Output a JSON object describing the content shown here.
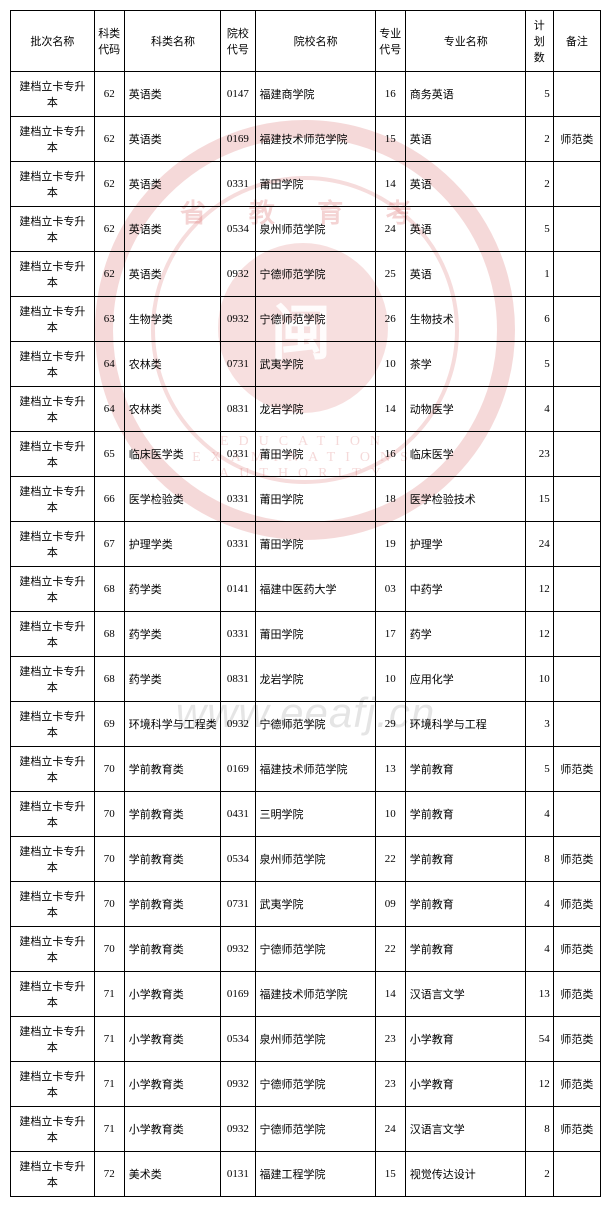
{
  "watermark": {
    "seal_top": "省 教 育 考",
    "seal_center": "闽",
    "seal_bottom": "EDUCATION EXAMINATIONS AUTHORITY",
    "url": "www.eeafj.cn"
  },
  "table": {
    "headers": {
      "batch": "批次名称",
      "subject_code": "科类\n代码",
      "subject_name": "科类名称",
      "school_code": "院校\n代号",
      "school_name": "院校名称",
      "major_code": "专业\n代号",
      "major_name": "专业名称",
      "plan": "计划\n数",
      "remark": "备注"
    },
    "rows": [
      {
        "batch": "建档立卡专升本",
        "sc": "62",
        "sn": "英语类",
        "cc": "0147",
        "cn": "福建商学院",
        "mc": "16",
        "mn": "商务英语",
        "p": "5",
        "r": ""
      },
      {
        "batch": "建档立卡专升本",
        "sc": "62",
        "sn": "英语类",
        "cc": "0169",
        "cn": "福建技术师范学院",
        "mc": "15",
        "mn": "英语",
        "p": "2",
        "r": "师范类"
      },
      {
        "batch": "建档立卡专升本",
        "sc": "62",
        "sn": "英语类",
        "cc": "0331",
        "cn": "莆田学院",
        "mc": "14",
        "mn": "英语",
        "p": "2",
        "r": ""
      },
      {
        "batch": "建档立卡专升本",
        "sc": "62",
        "sn": "英语类",
        "cc": "0534",
        "cn": "泉州师范学院",
        "mc": "24",
        "mn": "英语",
        "p": "5",
        "r": ""
      },
      {
        "batch": "建档立卡专升本",
        "sc": "62",
        "sn": "英语类",
        "cc": "0932",
        "cn": "宁德师范学院",
        "mc": "25",
        "mn": "英语",
        "p": "1",
        "r": ""
      },
      {
        "batch": "建档立卡专升本",
        "sc": "63",
        "sn": "生物学类",
        "cc": "0932",
        "cn": "宁德师范学院",
        "mc": "26",
        "mn": "生物技术",
        "p": "6",
        "r": ""
      },
      {
        "batch": "建档立卡专升本",
        "sc": "64",
        "sn": "农林类",
        "cc": "0731",
        "cn": "武夷学院",
        "mc": "10",
        "mn": "茶学",
        "p": "5",
        "r": ""
      },
      {
        "batch": "建档立卡专升本",
        "sc": "64",
        "sn": "农林类",
        "cc": "0831",
        "cn": "龙岩学院",
        "mc": "14",
        "mn": "动物医学",
        "p": "4",
        "r": ""
      },
      {
        "batch": "建档立卡专升本",
        "sc": "65",
        "sn": "临床医学类",
        "cc": "0331",
        "cn": "莆田学院",
        "mc": "16",
        "mn": "临床医学",
        "p": "23",
        "r": ""
      },
      {
        "batch": "建档立卡专升本",
        "sc": "66",
        "sn": "医学检验类",
        "cc": "0331",
        "cn": "莆田学院",
        "mc": "18",
        "mn": "医学检验技术",
        "p": "15",
        "r": ""
      },
      {
        "batch": "建档立卡专升本",
        "sc": "67",
        "sn": "护理学类",
        "cc": "0331",
        "cn": "莆田学院",
        "mc": "19",
        "mn": "护理学",
        "p": "24",
        "r": ""
      },
      {
        "batch": "建档立卡专升本",
        "sc": "68",
        "sn": "药学类",
        "cc": "0141",
        "cn": "福建中医药大学",
        "mc": "03",
        "mn": "中药学",
        "p": "12",
        "r": ""
      },
      {
        "batch": "建档立卡专升本",
        "sc": "68",
        "sn": "药学类",
        "cc": "0331",
        "cn": "莆田学院",
        "mc": "17",
        "mn": "药学",
        "p": "12",
        "r": ""
      },
      {
        "batch": "建档立卡专升本",
        "sc": "68",
        "sn": "药学类",
        "cc": "0831",
        "cn": "龙岩学院",
        "mc": "10",
        "mn": "应用化学",
        "p": "10",
        "r": ""
      },
      {
        "batch": "建档立卡专升本",
        "sc": "69",
        "sn": "环境科学与工程类",
        "cc": "0932",
        "cn": "宁德师范学院",
        "mc": "29",
        "mn": "环境科学与工程",
        "p": "3",
        "r": ""
      },
      {
        "batch": "建档立卡专升本",
        "sc": "70",
        "sn": "学前教育类",
        "cc": "0169",
        "cn": "福建技术师范学院",
        "mc": "13",
        "mn": "学前教育",
        "p": "5",
        "r": "师范类"
      },
      {
        "batch": "建档立卡专升本",
        "sc": "70",
        "sn": "学前教育类",
        "cc": "0431",
        "cn": "三明学院",
        "mc": "10",
        "mn": "学前教育",
        "p": "4",
        "r": ""
      },
      {
        "batch": "建档立卡专升本",
        "sc": "70",
        "sn": "学前教育类",
        "cc": "0534",
        "cn": "泉州师范学院",
        "mc": "22",
        "mn": "学前教育",
        "p": "8",
        "r": "师范类"
      },
      {
        "batch": "建档立卡专升本",
        "sc": "70",
        "sn": "学前教育类",
        "cc": "0731",
        "cn": "武夷学院",
        "mc": "09",
        "mn": "学前教育",
        "p": "4",
        "r": "师范类"
      },
      {
        "batch": "建档立卡专升本",
        "sc": "70",
        "sn": "学前教育类",
        "cc": "0932",
        "cn": "宁德师范学院",
        "mc": "22",
        "mn": "学前教育",
        "p": "4",
        "r": "师范类"
      },
      {
        "batch": "建档立卡专升本",
        "sc": "71",
        "sn": "小学教育类",
        "cc": "0169",
        "cn": "福建技术师范学院",
        "mc": "14",
        "mn": "汉语言文学",
        "p": "13",
        "r": "师范类"
      },
      {
        "batch": "建档立卡专升本",
        "sc": "71",
        "sn": "小学教育类",
        "cc": "0534",
        "cn": "泉州师范学院",
        "mc": "23",
        "mn": "小学教育",
        "p": "54",
        "r": "师范类"
      },
      {
        "batch": "建档立卡专升本",
        "sc": "71",
        "sn": "小学教育类",
        "cc": "0932",
        "cn": "宁德师范学院",
        "mc": "23",
        "mn": "小学教育",
        "p": "12",
        "r": "师范类"
      },
      {
        "batch": "建档立卡专升本",
        "sc": "71",
        "sn": "小学教育类",
        "cc": "0932",
        "cn": "宁德师范学院",
        "mc": "24",
        "mn": "汉语言文学",
        "p": "8",
        "r": "师范类"
      },
      {
        "batch": "建档立卡专升本",
        "sc": "72",
        "sn": "美术类",
        "cc": "0131",
        "cn": "福建工程学院",
        "mc": "15",
        "mn": "视觉传达设计",
        "p": "2",
        "r": ""
      }
    ]
  }
}
